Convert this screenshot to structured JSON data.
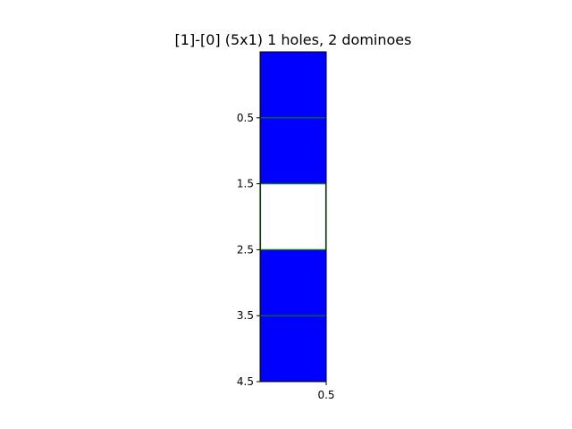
{
  "chart_data": {
    "type": "heatmap",
    "title": "[1]-[0]  (5x1) 1 holes, 2 dominoes",
    "rows": 5,
    "cols": 1,
    "cells": [
      {
        "row": 0,
        "col": 0,
        "state": "domino",
        "domino": 1
      },
      {
        "row": 1,
        "col": 0,
        "state": "domino",
        "domino": 1
      },
      {
        "row": 2,
        "col": 0,
        "state": "hole"
      },
      {
        "row": 3,
        "col": 0,
        "state": "domino",
        "domino": 2
      },
      {
        "row": 4,
        "col": 0,
        "state": "domino",
        "domino": 2
      }
    ],
    "xlim": [
      -0.5,
      0.5
    ],
    "ylim": [
      4.5,
      -0.5
    ],
    "x_ticks": [
      {
        "value": 0.5,
        "label": "0.5"
      }
    ],
    "y_ticks": [
      {
        "value": 0.5,
        "label": "0.5"
      },
      {
        "value": 1.5,
        "label": "1.5"
      },
      {
        "value": 2.5,
        "label": "2.5"
      },
      {
        "value": 3.5,
        "label": "3.5"
      },
      {
        "value": 4.5,
        "label": "4.5"
      }
    ],
    "xlabel": "",
    "ylabel": "",
    "grid": false,
    "colors": {
      "domino": "#0000ff",
      "hole": "#ffffff",
      "boundary": "#008000",
      "axes": "#000000"
    }
  }
}
